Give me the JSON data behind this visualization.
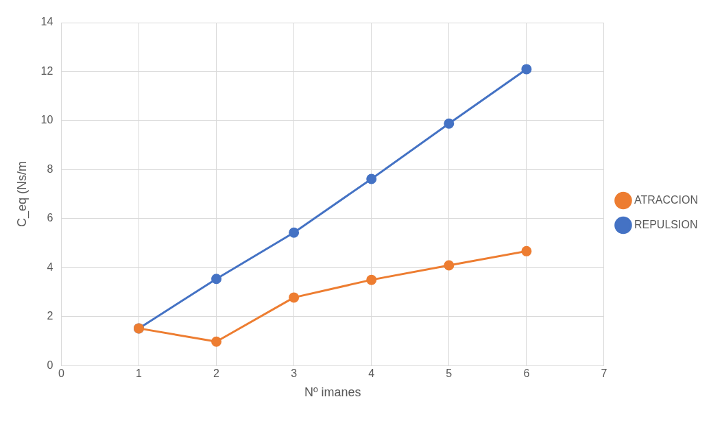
{
  "chart_data": {
    "type": "line",
    "x": [
      1,
      2,
      3,
      4,
      5,
      6
    ],
    "xlabel": "Nº imanes",
    "ylabel": "C_eq (Ns/m",
    "xlim": [
      0,
      7
    ],
    "xticks": [
      0,
      1,
      2,
      3,
      4,
      5,
      6,
      7
    ],
    "ylim": [
      0,
      14
    ],
    "yticks": [
      0,
      2,
      4,
      6,
      8,
      10,
      12,
      14
    ],
    "grid": true,
    "legend": "right",
    "marker": "circle",
    "line_style": "solid",
    "series": [
      {
        "name": "REPULSION",
        "color": "#4472c4",
        "values": [
          1.52,
          3.54,
          5.43,
          7.62,
          9.88,
          12.1
        ]
      },
      {
        "name": "ATRACCION",
        "color": "#ed7d31",
        "values": [
          1.52,
          0.98,
          2.78,
          3.5,
          4.09,
          4.67
        ]
      }
    ]
  }
}
